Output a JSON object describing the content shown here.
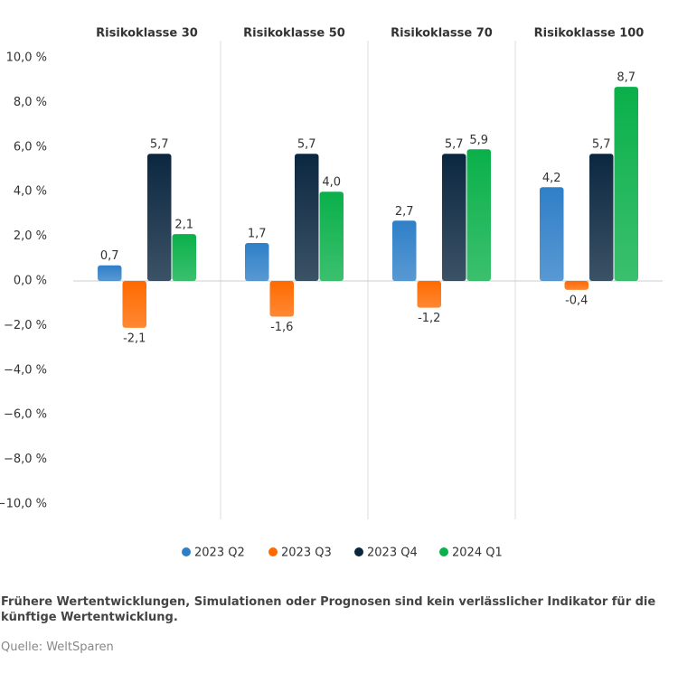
{
  "chart_data": {
    "type": "bar",
    "categories": [
      "Risikoklasse 30",
      "Risikoklasse 50",
      "Risikoklasse 70",
      "Risikoklasse 100"
    ],
    "series": [
      {
        "name": "2023 Q2",
        "color": "#2f7fc8",
        "values": [
          0.7,
          1.7,
          2.7,
          4.2
        ],
        "value_labels": [
          "0,7",
          "1,7",
          "2,7",
          "4,2"
        ]
      },
      {
        "name": "2023 Q3",
        "color": "#ff6a00",
        "values": [
          -2.1,
          -1.6,
          -1.2,
          -0.4
        ],
        "value_labels": [
          "-2,1",
          "-1,6",
          "-1,2",
          "-0,4"
        ]
      },
      {
        "name": "2023 Q4",
        "color": "#0b2740",
        "values": [
          5.7,
          5.7,
          5.7,
          5.7
        ],
        "value_labels": [
          "5,7",
          "5,7",
          "5,7",
          "5,7"
        ]
      },
      {
        "name": "2024 Q1",
        "color": "#0ab04a",
        "values": [
          2.1,
          4.0,
          5.9,
          8.7
        ],
        "value_labels": [
          "2,1",
          "4,0",
          "5,9",
          "8,7"
        ]
      }
    ],
    "ylim": [
      -10,
      10
    ],
    "yticks": [
      {
        "value": 10,
        "label": "10,0 %"
      },
      {
        "value": 8,
        "label": "8,0 %"
      },
      {
        "value": 6,
        "label": "6,0 %"
      },
      {
        "value": 4,
        "label": "4,0 %"
      },
      {
        "value": 2,
        "label": "2,0 %"
      },
      {
        "value": 0,
        "label": "0,0 %"
      },
      {
        "value": -2,
        "label": "−2,0 %"
      },
      {
        "value": -4,
        "label": "−4,0 %"
      },
      {
        "value": -6,
        "label": "−6,0 %"
      },
      {
        "value": -8,
        "label": "−8,0 %"
      },
      {
        "value": -10,
        "label": "−10,0 %"
      }
    ],
    "footnote": "Frühere Wertentwicklungen, Simulationen oder Prognosen sind kein verlässlicher Indikator für die künftige Wertentwicklung.",
    "source": "Quelle: WeltSparen"
  }
}
